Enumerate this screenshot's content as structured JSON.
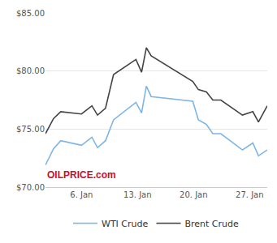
{
  "chart_data": {
    "type": "line",
    "annotation": "OILPRICE.com",
    "x": [
      1.5,
      2.5,
      3.4,
      6,
      7.3,
      8,
      9,
      10,
      12.8,
      13.5,
      14.1,
      14.7,
      19.9,
      20.6,
      21.6,
      22.4,
      23.4,
      26.1,
      27.4,
      28.1,
      29.2
    ],
    "series": [
      {
        "name": "WTI Crude",
        "color": "#7cb5e6",
        "values": [
          71.9,
          73.3,
          74.0,
          73.6,
          74.3,
          73.4,
          74.0,
          75.8,
          77.3,
          76.4,
          78.7,
          77.8,
          77.4,
          75.8,
          75.4,
          74.6,
          74.6,
          73.2,
          73.8,
          72.7,
          73.2
        ]
      },
      {
        "name": "Brent Crude",
        "color": "#444444",
        "values": [
          74.6,
          75.9,
          76.5,
          76.3,
          77.0,
          76.2,
          76.8,
          79.7,
          81.0,
          79.9,
          82.0,
          81.3,
          79.1,
          78.4,
          78.2,
          77.5,
          77.5,
          76.2,
          76.5,
          75.6,
          77.0
        ]
      }
    ],
    "xlim": [
      1.5,
      29.2
    ],
    "xticks": [
      {
        "value": 6,
        "label": "6. Jan"
      },
      {
        "value": 13,
        "label": "13. Jan"
      },
      {
        "value": 20,
        "label": "20. Jan"
      },
      {
        "value": 27,
        "label": "27. Jan"
      }
    ],
    "ylim": [
      70,
      85
    ],
    "yticks": [
      {
        "value": 70,
        "label": "$70.00"
      },
      {
        "value": 75,
        "label": "$75.00"
      },
      {
        "value": 80,
        "label": "$80.00"
      },
      {
        "value": 85,
        "label": "$85.00"
      }
    ],
    "grid": true,
    "legend": "bottom"
  }
}
